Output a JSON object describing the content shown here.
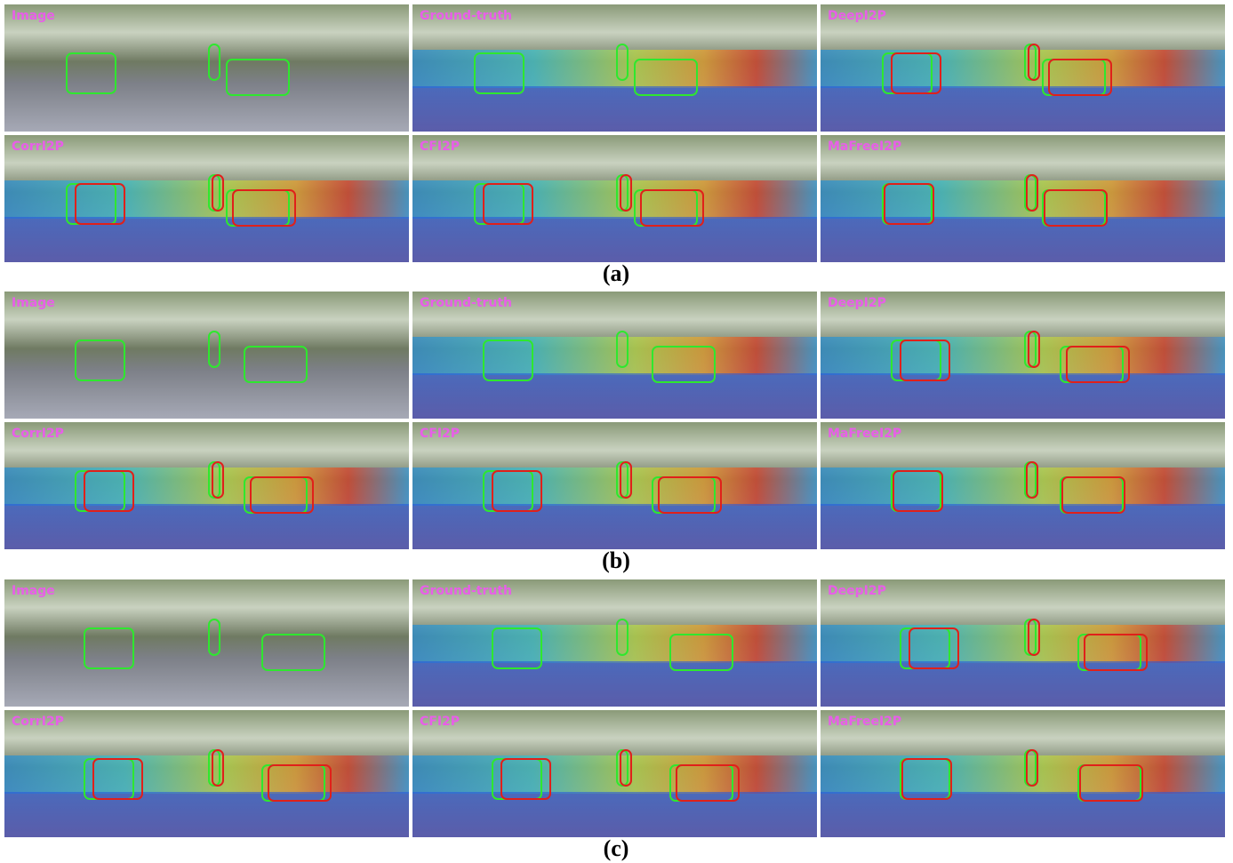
{
  "groups": [
    {
      "label": "(a)",
      "panels": [
        "Image",
        "Ground-truth",
        "DeepI2P",
        "CorrI2P",
        "CFI2P",
        "MaFreeI2P"
      ]
    },
    {
      "label": "(b)",
      "panels": [
        "Image",
        "Ground-truth",
        "DeepI2P",
        "CorrI2P",
        "CFI2P",
        "MaFreeI2P"
      ]
    },
    {
      "label": "(c)",
      "panels": [
        "Image",
        "Ground-truth",
        "DeepI2P",
        "CorrI2P",
        "CFI2P",
        "MaFreeI2P"
      ]
    }
  ]
}
